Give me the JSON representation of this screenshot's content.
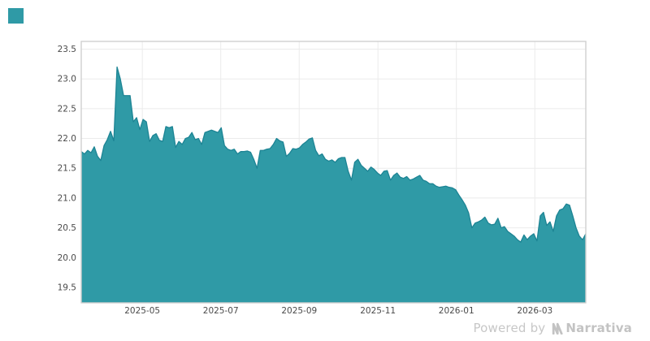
{
  "branding": {
    "logo_square_color": "#2f9aa6",
    "watermark_prefix": "Powered by",
    "watermark_brand": "Narrativa",
    "watermark_color": "#c7c7c7"
  },
  "chart_data": {
    "type": "area",
    "title": "",
    "legend": "none",
    "grid": "on",
    "x_sampling": "uniform-across-range",
    "x_ticks": [
      {
        "label": "2025-05",
        "pos": 0.121
      },
      {
        "label": "2025-07",
        "pos": 0.2765
      },
      {
        "label": "2025-09",
        "pos": 0.432
      },
      {
        "label": "2025-11",
        "pos": 0.588
      },
      {
        "label": "2026-01",
        "pos": 0.7435
      },
      {
        "label": "2026-03",
        "pos": 0.899
      }
    ],
    "y_ticks": [
      19.5,
      20.0,
      20.5,
      21.0,
      21.5,
      22.0,
      22.5,
      23.0,
      23.5
    ],
    "ylim": [
      19.24,
      23.63
    ],
    "line_color": "#1d8494",
    "fill_color": "#2f9aa6",
    "grid_color": "#ebebeb",
    "spine_color": "#cfcfcf",
    "tick_label_color": "#4a4a4a",
    "values": [
      21.78,
      21.74,
      21.8,
      21.76,
      21.86,
      21.7,
      21.63,
      21.88,
      21.98,
      22.12,
      21.96,
      23.2,
      23.0,
      22.72,
      22.72,
      22.72,
      22.28,
      22.35,
      22.15,
      22.32,
      22.28,
      21.95,
      22.05,
      22.08,
      21.97,
      21.95,
      22.2,
      22.18,
      22.2,
      21.85,
      21.95,
      21.9,
      22.0,
      22.02,
      22.1,
      21.98,
      22.0,
      21.9,
      22.1,
      22.12,
      22.14,
      22.12,
      22.1,
      22.18,
      21.88,
      21.82,
      21.8,
      21.82,
      21.74,
      21.78,
      21.78,
      21.79,
      21.77,
      21.65,
      21.5,
      21.8,
      21.8,
      21.82,
      21.83,
      21.9,
      22.0,
      21.96,
      21.94,
      21.7,
      21.75,
      21.83,
      21.82,
      21.84,
      21.9,
      21.94,
      21.99,
      22.01,
      21.8,
      21.71,
      21.74,
      21.65,
      21.62,
      21.64,
      21.6,
      21.66,
      21.68,
      21.68,
      21.45,
      21.3,
      21.6,
      21.65,
      21.55,
      21.5,
      21.45,
      21.52,
      21.48,
      21.42,
      21.38,
      21.45,
      21.46,
      21.3,
      21.38,
      21.42,
      21.35,
      21.33,
      21.36,
      21.3,
      21.32,
      21.35,
      21.38,
      21.3,
      21.28,
      21.24,
      21.24,
      21.2,
      21.18,
      21.19,
      21.2,
      21.18,
      21.17,
      21.14,
      21.05,
      20.97,
      20.88,
      20.75,
      20.5,
      20.58,
      20.6,
      20.63,
      20.68,
      20.58,
      20.55,
      20.56,
      20.66,
      20.5,
      20.52,
      20.44,
      20.4,
      20.36,
      20.3,
      20.26,
      20.38,
      20.3,
      20.36,
      20.4,
      20.28,
      20.7,
      20.76,
      20.54,
      20.6,
      20.44,
      20.7,
      20.8,
      20.82,
      20.9,
      20.88,
      20.7,
      20.5,
      20.36,
      20.3,
      20.4
    ]
  }
}
